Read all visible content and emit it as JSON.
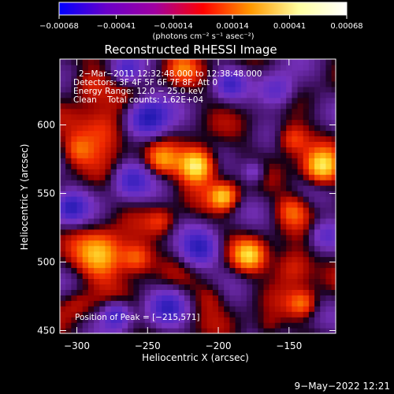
{
  "chart_data": {
    "type": "heatmap",
    "title": "Reconstructed RHESSI Image",
    "xlabel": "Heliocentric X (arcsec)",
    "ylabel": "Heliocentric Y (arcsec)",
    "xlim": [
      -312,
      -117
    ],
    "ylim": [
      448,
      648
    ],
    "x_ticks": [
      {
        "value": -300,
        "label": "−300"
      },
      {
        "value": -250,
        "label": "−250"
      },
      {
        "value": -200,
        "label": "−200"
      },
      {
        "value": -150,
        "label": "−150"
      }
    ],
    "y_ticks": [
      {
        "value": 450,
        "label": "450"
      },
      {
        "value": 500,
        "label": "500"
      },
      {
        "value": 550,
        "label": "550"
      },
      {
        "value": 600,
        "label": "600"
      }
    ],
    "colorbar": {
      "range": [
        -0.00068,
        0.00068
      ],
      "tick_values": [
        -0.00068,
        -0.00041,
        -0.00014,
        0.00014,
        0.00041,
        0.00068
      ],
      "tick_labels": [
        "−0.00068",
        "−0.00041",
        "−0.00014",
        "0.00014",
        "0.00041",
        "0.00068"
      ],
      "units": "(photons cm⁻² s⁻¹ asec⁻²)",
      "colors": [
        "#0000ff",
        "#6a00c8",
        "#a000a0",
        "#ff0000",
        "#ff9900",
        "#ffffa0",
        "#ffffff"
      ]
    },
    "annotations": [
      "2−Mar−2011 12:32:48.000 to 12:38:48.000",
      "Detectors: 3F 4F 5F 6F 7F 8F, Att 0",
      "Energy Range: 12.0 − 25.0 keV",
      "Clean    Total counts: 1.62E+04",
      "Position of Peak = [−215,571]"
    ],
    "sources": [
      {
        "x": -215,
        "y": 571,
        "sigma": 9,
        "amp": 1.0
      },
      {
        "x": -196,
        "y": 548,
        "sigma": 7,
        "amp": 0.7
      },
      {
        "x": -240,
        "y": 574,
        "sigma": 8,
        "amp": 0.5
      },
      {
        "x": -127,
        "y": 569,
        "sigma": 9,
        "amp": 0.8
      },
      {
        "x": -148,
        "y": 590,
        "sigma": 8,
        "amp": 0.5
      },
      {
        "x": -282,
        "y": 505,
        "sigma": 12,
        "amp": 0.75
      },
      {
        "x": -258,
        "y": 503,
        "sigma": 8,
        "amp": 0.55
      },
      {
        "x": -178,
        "y": 505,
        "sigma": 8,
        "amp": 0.65
      },
      {
        "x": -147,
        "y": 497,
        "sigma": 10,
        "amp": 0.5
      },
      {
        "x": -140,
        "y": 470,
        "sigma": 7,
        "amp": 0.45
      },
      {
        "x": -280,
        "y": 595,
        "sigma": 12,
        "amp": 0.55
      },
      {
        "x": -300,
        "y": 582,
        "sigma": 8,
        "amp": 0.4
      },
      {
        "x": -292,
        "y": 630,
        "sigma": 9,
        "amp": 0.4
      },
      {
        "x": -225,
        "y": 642,
        "sigma": 8,
        "amp": 0.35
      },
      {
        "x": -148,
        "y": 538,
        "sigma": 8,
        "amp": 0.4
      },
      {
        "x": -300,
        "y": 470,
        "sigma": 8,
        "amp": 0.25
      },
      {
        "x": -240,
        "y": 530,
        "sigma": 7,
        "amp": 0.3
      },
      {
        "x": -205,
        "y": 475,
        "sigma": 8,
        "amp": 0.25
      },
      {
        "x": -165,
        "y": 452,
        "sigma": 7,
        "amp": 0.25
      }
    ],
    "negatives": [
      {
        "x": -250,
        "y": 605,
        "sigma": 10,
        "amp": 0.9
      },
      {
        "x": -262,
        "y": 560,
        "sigma": 9,
        "amp": 0.6
      },
      {
        "x": -213,
        "y": 510,
        "sigma": 9,
        "amp": 0.7
      },
      {
        "x": -158,
        "y": 625,
        "sigma": 9,
        "amp": 0.6
      },
      {
        "x": -305,
        "y": 540,
        "sigma": 8,
        "amp": 0.7
      },
      {
        "x": -235,
        "y": 468,
        "sigma": 9,
        "amp": 0.6
      },
      {
        "x": -125,
        "y": 520,
        "sigma": 8,
        "amp": 0.5
      },
      {
        "x": -272,
        "y": 462,
        "sigma": 7,
        "amp": 0.7
      },
      {
        "x": -175,
        "y": 566,
        "sigma": 6,
        "amp": 0.45
      },
      {
        "x": -192,
        "y": 630,
        "sigma": 7,
        "amp": 0.5
      },
      {
        "x": -265,
        "y": 640,
        "sigma": 7,
        "amp": 0.5
      }
    ],
    "grid": false,
    "legend": "none"
  },
  "footer": {
    "timestamp": "9−May−2022 12:21"
  }
}
